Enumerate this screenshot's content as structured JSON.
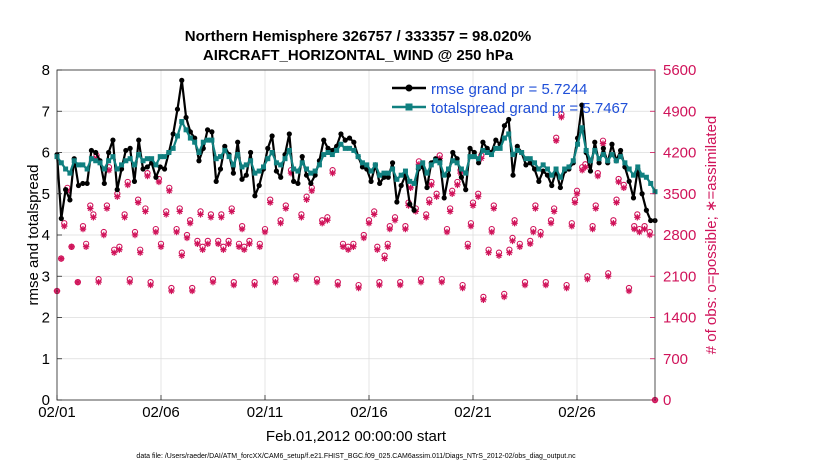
{
  "chart_data": {
    "type": "line",
    "title_line1": "Northern Hemisphere 326757 / 333357 = 98.020%",
    "title_line2": "AIRCRAFT_HORIZONTAL_WIND @ 250 hPa",
    "xlabel": "Feb.01,2012 00:00:00 start",
    "ylabel_left": "rmse and totalspread",
    "ylabel_right": "# of obs: o=possible; ∗=assimilated",
    "footer": "data file: /Users/raeder/DAI/ATM_forcXX/CAM6_setup/f.e21.FHIST_BGC.f09_025.CAM6assim.011/Diags_NTrS_2012-02/obs_diag_output.nc",
    "x_ticks": [
      "02/01",
      "02/06",
      "02/11",
      "02/16",
      "02/21",
      "02/26"
    ],
    "x_tick_days": [
      0,
      5,
      10,
      15,
      20,
      25
    ],
    "xlim": [
      0,
      28.75
    ],
    "ylim_left": [
      0,
      8
    ],
    "y_ticks_left": [
      "0",
      "1",
      "2",
      "3",
      "4",
      "5",
      "6",
      "7",
      "8"
    ],
    "ylim_right": [
      0,
      5600
    ],
    "y_ticks_right": [
      "0",
      "700",
      "1400",
      "2100",
      "2800",
      "3500",
      "4200",
      "4900",
      "5600"
    ],
    "colors": {
      "rmse": "#000000",
      "spread": "#108080",
      "obs": "#d0135a",
      "grid": "#dcdcdc",
      "legend_text": "#1f4fd8"
    },
    "series": [
      {
        "name": "rmse grand pr = 5.7244",
        "values": [
          5.95,
          4.4,
          5.1,
          4.85,
          5.85,
          5.2,
          5.25,
          5.25,
          6.05,
          6.0,
          5.8,
          5.25,
          6.0,
          6.3,
          5.1,
          5.6,
          6.05,
          6.1,
          5.3,
          6.3,
          5.6,
          5.65,
          5.75,
          5.4,
          5.65,
          5.6,
          6.0,
          6.45,
          7.05,
          7.75,
          6.85,
          6.5,
          6.35,
          5.8,
          6.1,
          6.55,
          6.5,
          5.3,
          5.6,
          6.15,
          5.95,
          5.5,
          6.25,
          5.35,
          5.45,
          6.0,
          4.95,
          5.2,
          5.6,
          6.1,
          6.4,
          5.55,
          5.4,
          5.95,
          6.45,
          5.3,
          5.25,
          5.9,
          5.45,
          5.25,
          5.45,
          5.8,
          6.3,
          6.1,
          6.05,
          6.15,
          6.45,
          6.3,
          6.35,
          6.25,
          5.9,
          5.65,
          5.6,
          5.3,
          5.7,
          5.25,
          5.4,
          5.4,
          5.75,
          4.8,
          5.2,
          5.45,
          4.75,
          4.6,
          5.6,
          5.65,
          5.15,
          5.75,
          5.85,
          5.8,
          4.9,
          5.45,
          6.0,
          5.85,
          5.4,
          5.1,
          6.1,
          6.0,
          5.75,
          6.25,
          6.1,
          6.0,
          6.3,
          6.2,
          6.65,
          6.8,
          5.45,
          6.15,
          6.0,
          5.7,
          5.75,
          5.6,
          5.3,
          5.55,
          5.45,
          5.2,
          5.55,
          5.15,
          5.55,
          5.6,
          5.75,
          6.35,
          7.15,
          6.0,
          5.55,
          6.25,
          5.75,
          6.1,
          5.75,
          6.2,
          5.8,
          6.05,
          5.65,
          5.3,
          4.9,
          5.6,
          5.0,
          4.6,
          4.35,
          4.35
        ]
      },
      {
        "name": "totalspread grand pr = 5.7467",
        "values": [
          5.9,
          5.75,
          5.6,
          5.5,
          5.8,
          5.7,
          5.7,
          5.6,
          5.85,
          5.8,
          5.75,
          5.6,
          5.8,
          5.9,
          5.6,
          5.7,
          5.8,
          5.85,
          5.7,
          5.95,
          5.8,
          5.85,
          5.85,
          5.7,
          5.9,
          5.9,
          6.0,
          6.1,
          6.4,
          6.75,
          6.55,
          6.35,
          6.25,
          6.0,
          6.25,
          6.3,
          6.3,
          5.85,
          5.9,
          6.05,
          5.9,
          5.7,
          5.95,
          5.65,
          5.7,
          5.8,
          5.5,
          5.55,
          5.65,
          5.85,
          6.0,
          5.75,
          5.7,
          5.85,
          6.05,
          5.6,
          5.55,
          5.75,
          5.6,
          5.5,
          5.55,
          5.7,
          5.95,
          6.0,
          5.95,
          6.05,
          6.2,
          6.1,
          6.1,
          6.05,
          5.9,
          5.75,
          5.7,
          5.55,
          5.7,
          5.45,
          5.5,
          5.5,
          5.6,
          5.35,
          5.45,
          5.55,
          5.3,
          5.25,
          5.65,
          5.75,
          5.5,
          5.7,
          5.8,
          5.75,
          5.45,
          5.6,
          5.8,
          5.75,
          5.6,
          5.5,
          5.9,
          5.9,
          5.85,
          6.05,
          6.0,
          5.95,
          6.1,
          6.1,
          6.35,
          6.45,
          5.95,
          6.05,
          6.0,
          5.85,
          5.85,
          5.75,
          5.6,
          5.7,
          5.6,
          5.45,
          5.6,
          5.4,
          5.6,
          5.65,
          5.8,
          6.2,
          6.6,
          6.05,
          5.8,
          6.05,
          5.85,
          5.95,
          5.8,
          5.95,
          5.8,
          5.9,
          5.75,
          5.6,
          5.45,
          5.65,
          5.45,
          5.4,
          5.25,
          5.05
        ]
      }
    ],
    "obs_possible": [
      [
        0.0,
        1850
      ],
      [
        0.2,
        2400
      ],
      [
        0.35,
        3000
      ],
      [
        0.5,
        3600
      ],
      [
        0.7,
        2600
      ],
      [
        1.0,
        2000
      ],
      [
        1.25,
        2950
      ],
      [
        1.4,
        2650
      ],
      [
        1.6,
        3300
      ],
      [
        1.75,
        3150
      ],
      [
        1.9,
        4150
      ],
      [
        2.0,
        2050
      ],
      [
        2.25,
        2850
      ],
      [
        2.4,
        3300
      ],
      [
        2.5,
        3950
      ],
      [
        2.75,
        2550
      ],
      [
        2.9,
        3500
      ],
      [
        3.0,
        2600
      ],
      [
        3.25,
        3150
      ],
      [
        3.4,
        3700
      ],
      [
        3.5,
        2050
      ],
      [
        3.75,
        2850
      ],
      [
        3.9,
        3400
      ],
      [
        4.0,
        2550
      ],
      [
        4.25,
        3250
      ],
      [
        4.35,
        3850
      ],
      [
        4.5,
        2000
      ],
      [
        4.75,
        2900
      ],
      [
        4.9,
        3750
      ],
      [
        5.0,
        2650
      ],
      [
        5.25,
        3200
      ],
      [
        5.4,
        3600
      ],
      [
        5.5,
        1900
      ],
      [
        5.75,
        2900
      ],
      [
        5.9,
        3250
      ],
      [
        6.0,
        2500
      ],
      [
        6.25,
        2800
      ],
      [
        6.4,
        3050
      ],
      [
        6.5,
        1900
      ],
      [
        6.75,
        2700
      ],
      [
        6.9,
        3200
      ],
      [
        7.0,
        2600
      ],
      [
        7.25,
        2700
      ],
      [
        7.4,
        3150
      ],
      [
        7.5,
        2050
      ],
      [
        7.75,
        2700
      ],
      [
        7.9,
        3150
      ],
      [
        8.0,
        2600
      ],
      [
        8.25,
        2700
      ],
      [
        8.4,
        3250
      ],
      [
        8.5,
        2000
      ],
      [
        8.75,
        2650
      ],
      [
        8.9,
        2950
      ],
      [
        9.0,
        2600
      ],
      [
        9.25,
        2700
      ],
      [
        9.5,
        2000
      ],
      [
        9.75,
        2650
      ],
      [
        10.0,
        2900
      ],
      [
        10.25,
        3400
      ],
      [
        10.5,
        2050
      ],
      [
        10.75,
        3050
      ],
      [
        11.0,
        3300
      ],
      [
        11.25,
        3900
      ],
      [
        11.5,
        2100
      ],
      [
        11.75,
        3150
      ],
      [
        12.0,
        3450
      ],
      [
        12.25,
        3600
      ],
      [
        12.5,
        2050
      ],
      [
        12.75,
        3050
      ],
      [
        13.0,
        3100
      ],
      [
        13.25,
        3900
      ],
      [
        13.5,
        2000
      ],
      [
        13.75,
        2650
      ],
      [
        14.0,
        2600
      ],
      [
        14.25,
        2650
      ],
      [
        14.5,
        1950
      ],
      [
        14.75,
        2800
      ],
      [
        15.0,
        3050
      ],
      [
        15.25,
        3200
      ],
      [
        15.4,
        2600
      ],
      [
        15.5,
        2000
      ],
      [
        15.75,
        2450
      ],
      [
        15.9,
        2650
      ],
      [
        16.0,
        2950
      ],
      [
        16.25,
        3100
      ],
      [
        16.5,
        2000
      ],
      [
        16.75,
        2950
      ],
      [
        16.9,
        3350
      ],
      [
        17.0,
        3650
      ],
      [
        17.25,
        3250
      ],
      [
        17.4,
        4050
      ],
      [
        17.5,
        2050
      ],
      [
        17.75,
        3150
      ],
      [
        17.9,
        3400
      ],
      [
        18.0,
        3700
      ],
      [
        18.25,
        3500
      ],
      [
        18.4,
        4150
      ],
      [
        18.5,
        2050
      ],
      [
        18.75,
        2900
      ],
      [
        18.9,
        3250
      ],
      [
        19.0,
        3550
      ],
      [
        19.25,
        3700
      ],
      [
        19.4,
        3900
      ],
      [
        19.5,
        1950
      ],
      [
        19.75,
        2650
      ],
      [
        19.9,
        3000
      ],
      [
        20.0,
        3350
      ],
      [
        20.25,
        3500
      ],
      [
        20.4,
        4150
      ],
      [
        20.5,
        1750
      ],
      [
        20.75,
        2550
      ],
      [
        20.9,
        2900
      ],
      [
        21.0,
        3300
      ],
      [
        21.25,
        2500
      ],
      [
        21.5,
        1800
      ],
      [
        21.75,
        2550
      ],
      [
        21.9,
        2750
      ],
      [
        22.0,
        3050
      ],
      [
        22.25,
        2650
      ],
      [
        22.5,
        2000
      ],
      [
        22.75,
        2700
      ],
      [
        22.9,
        2900
      ],
      [
        23.0,
        3300
      ],
      [
        23.25,
        2850
      ],
      [
        23.5,
        2000
      ],
      [
        23.75,
        3050
      ],
      [
        23.9,
        3250
      ],
      [
        24.0,
        4450
      ],
      [
        24.25,
        4850
      ],
      [
        24.5,
        1950
      ],
      [
        24.75,
        3000
      ],
      [
        24.9,
        3400
      ],
      [
        25.0,
        3550
      ],
      [
        25.25,
        3950
      ],
      [
        25.4,
        4000
      ],
      [
        25.5,
        2100
      ],
      [
        25.75,
        2950
      ],
      [
        25.9,
        3300
      ],
      [
        26.0,
        3850
      ],
      [
        26.25,
        4400
      ],
      [
        26.5,
        2150
      ],
      [
        26.75,
        3050
      ],
      [
        26.9,
        3400
      ],
      [
        27.0,
        3750
      ],
      [
        27.25,
        3650
      ],
      [
        27.5,
        1900
      ],
      [
        27.75,
        2950
      ],
      [
        27.9,
        3150
      ],
      [
        28.0,
        2900
      ],
      [
        28.25,
        2950
      ],
      [
        28.5,
        2850
      ],
      [
        28.75,
        0
      ]
    ],
    "obs_assimilated": [
      [
        0.0,
        1850
      ],
      [
        0.2,
        2400
      ],
      [
        0.35,
        2950
      ],
      [
        0.5,
        3550
      ],
      [
        0.7,
        2600
      ],
      [
        1.0,
        2000
      ],
      [
        1.25,
        2900
      ],
      [
        1.4,
        2600
      ],
      [
        1.6,
        3250
      ],
      [
        1.75,
        3100
      ],
      [
        1.9,
        4100
      ],
      [
        2.0,
        2000
      ],
      [
        2.25,
        2800
      ],
      [
        2.4,
        3250
      ],
      [
        2.5,
        3900
      ],
      [
        2.75,
        2500
      ],
      [
        2.9,
        3450
      ],
      [
        3.0,
        2550
      ],
      [
        3.25,
        3100
      ],
      [
        3.4,
        3650
      ],
      [
        3.5,
        2000
      ],
      [
        3.75,
        2800
      ],
      [
        3.9,
        3350
      ],
      [
        4.0,
        2500
      ],
      [
        4.25,
        3200
      ],
      [
        4.35,
        3800
      ],
      [
        4.5,
        1950
      ],
      [
        4.75,
        2850
      ],
      [
        4.9,
        3700
      ],
      [
        5.0,
        2600
      ],
      [
        5.25,
        3150
      ],
      [
        5.4,
        3550
      ],
      [
        5.5,
        1850
      ],
      [
        5.75,
        2850
      ],
      [
        5.9,
        3200
      ],
      [
        6.0,
        2450
      ],
      [
        6.25,
        2750
      ],
      [
        6.4,
        3000
      ],
      [
        6.5,
        1850
      ],
      [
        6.75,
        2650
      ],
      [
        6.9,
        3150
      ],
      [
        7.0,
        2550
      ],
      [
        7.25,
        2650
      ],
      [
        7.4,
        3100
      ],
      [
        7.5,
        2000
      ],
      [
        7.75,
        2650
      ],
      [
        7.9,
        3100
      ],
      [
        8.0,
        2550
      ],
      [
        8.25,
        2650
      ],
      [
        8.4,
        3200
      ],
      [
        8.5,
        1950
      ],
      [
        8.75,
        2600
      ],
      [
        8.9,
        2900
      ],
      [
        9.0,
        2550
      ],
      [
        9.25,
        2650
      ],
      [
        9.5,
        1950
      ],
      [
        9.75,
        2600
      ],
      [
        10.0,
        2850
      ],
      [
        10.25,
        3350
      ],
      [
        10.5,
        2000
      ],
      [
        10.75,
        3000
      ],
      [
        11.0,
        3250
      ],
      [
        11.25,
        3850
      ],
      [
        11.5,
        2050
      ],
      [
        11.75,
        3100
      ],
      [
        12.0,
        3400
      ],
      [
        12.25,
        3550
      ],
      [
        12.5,
        2000
      ],
      [
        12.75,
        3000
      ],
      [
        13.0,
        3050
      ],
      [
        13.25,
        3850
      ],
      [
        13.5,
        1950
      ],
      [
        13.75,
        2600
      ],
      [
        14.0,
        2550
      ],
      [
        14.25,
        2600
      ],
      [
        14.5,
        1900
      ],
      [
        14.75,
        2750
      ],
      [
        15.0,
        3000
      ],
      [
        15.25,
        3150
      ],
      [
        15.4,
        2550
      ],
      [
        15.5,
        1950
      ],
      [
        15.75,
        2400
      ],
      [
        15.9,
        2600
      ],
      [
        16.0,
        2900
      ],
      [
        16.25,
        3050
      ],
      [
        16.5,
        1950
      ],
      [
        16.75,
        2900
      ],
      [
        16.9,
        3300
      ],
      [
        17.0,
        3600
      ],
      [
        17.25,
        3200
      ],
      [
        17.4,
        4000
      ],
      [
        17.5,
        2000
      ],
      [
        17.75,
        3100
      ],
      [
        17.9,
        3350
      ],
      [
        18.0,
        3650
      ],
      [
        18.25,
        3450
      ],
      [
        18.4,
        4100
      ],
      [
        18.5,
        2000
      ],
      [
        18.75,
        2850
      ],
      [
        18.9,
        3200
      ],
      [
        19.0,
        3500
      ],
      [
        19.25,
        3650
      ],
      [
        19.4,
        3850
      ],
      [
        19.5,
        1900
      ],
      [
        19.75,
        2600
      ],
      [
        19.9,
        2950
      ],
      [
        20.0,
        3300
      ],
      [
        20.25,
        3450
      ],
      [
        20.4,
        4100
      ],
      [
        20.5,
        1700
      ],
      [
        20.75,
        2500
      ],
      [
        20.9,
        2850
      ],
      [
        21.0,
        3250
      ],
      [
        21.25,
        2450
      ],
      [
        21.5,
        1750
      ],
      [
        21.75,
        2500
      ],
      [
        21.9,
        2700
      ],
      [
        22.0,
        3000
      ],
      [
        22.25,
        2600
      ],
      [
        22.5,
        1950
      ],
      [
        22.75,
        2650
      ],
      [
        22.9,
        2850
      ],
      [
        23.0,
        3250
      ],
      [
        23.25,
        2800
      ],
      [
        23.5,
        1950
      ],
      [
        23.75,
        3000
      ],
      [
        23.9,
        3200
      ],
      [
        24.0,
        4400
      ],
      [
        24.25,
        4800
      ],
      [
        24.5,
        1900
      ],
      [
        24.75,
        2950
      ],
      [
        24.9,
        3350
      ],
      [
        25.0,
        3500
      ],
      [
        25.25,
        3900
      ],
      [
        25.4,
        3950
      ],
      [
        25.5,
        2050
      ],
      [
        25.75,
        2900
      ],
      [
        25.9,
        3250
      ],
      [
        26.0,
        3800
      ],
      [
        26.25,
        4350
      ],
      [
        26.5,
        2100
      ],
      [
        26.75,
        3000
      ],
      [
        26.9,
        3350
      ],
      [
        27.0,
        3700
      ],
      [
        27.25,
        3600
      ],
      [
        27.5,
        1850
      ],
      [
        27.75,
        2900
      ],
      [
        27.9,
        3100
      ],
      [
        28.0,
        2850
      ],
      [
        28.25,
        2900
      ],
      [
        28.5,
        2800
      ],
      [
        28.75,
        0
      ]
    ]
  }
}
